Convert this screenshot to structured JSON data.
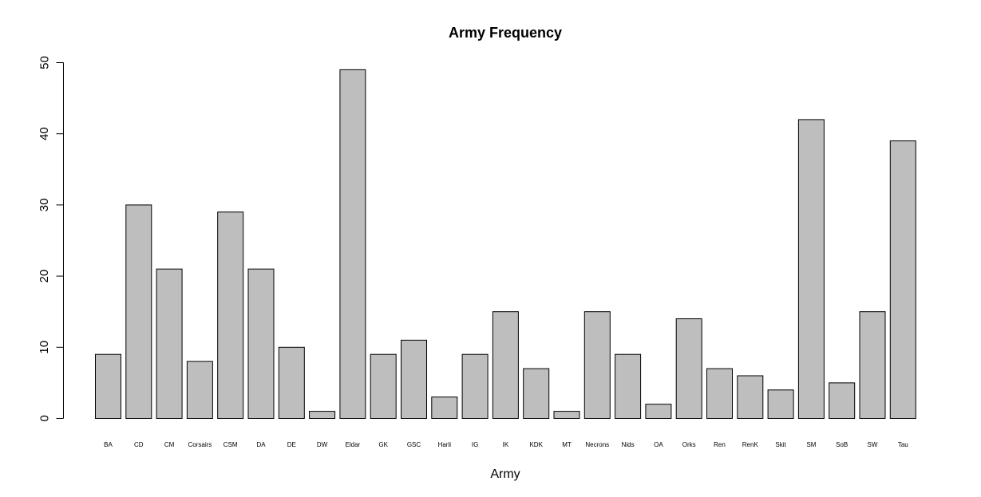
{
  "chart_data": {
    "type": "bar",
    "title": "Army Frequency",
    "xlabel": "Army",
    "ylabel": "",
    "ylim": [
      0,
      50
    ],
    "yticks": [
      0,
      10,
      20,
      30,
      40,
      50
    ],
    "grid": false,
    "bar_color": "#bebebe",
    "categories": [
      "BA",
      "CD",
      "CM",
      "Corsairs",
      "CSM",
      "DA",
      "DE",
      "DW",
      "Eldar",
      "GK",
      "GSC",
      "Harli",
      "IG",
      "IK",
      "KDK",
      "MT",
      "Necrons",
      "Nids",
      "OA",
      "Orks",
      "Ren",
      "RenK",
      "Skit",
      "SM",
      "SoB",
      "SW",
      "Tau"
    ],
    "values": [
      9,
      30,
      21,
      8,
      29,
      21,
      10,
      1,
      49,
      9,
      11,
      3,
      9,
      15,
      7,
      1,
      15,
      9,
      2,
      14,
      7,
      6,
      4,
      42,
      5,
      15,
      39
    ]
  }
}
